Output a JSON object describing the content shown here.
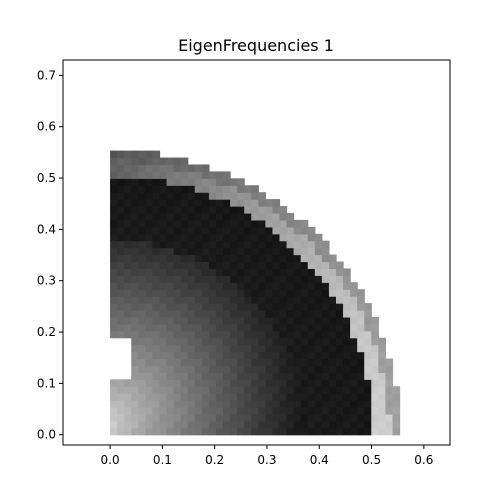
{
  "chart_data": {
    "type": "heatmap",
    "title": "EigenFrequencies 1",
    "xlabel": "",
    "ylabel": "",
    "xlim": [
      -0.09,
      0.65
    ],
    "ylim": [
      -0.02,
      0.73
    ],
    "x_ticks": [
      0.0,
      0.1,
      0.2,
      0.3,
      0.4,
      0.5,
      0.6
    ],
    "x_tick_labels": [
      "0.0",
      "0.1",
      "0.2",
      "0.3",
      "0.4",
      "0.5",
      "0.6"
    ],
    "y_ticks": [
      0.0,
      0.1,
      0.2,
      0.3,
      0.4,
      0.5,
      0.6,
      0.7
    ],
    "y_tick_labels": [
      "0.0",
      "0.1",
      "0.2",
      "0.3",
      "0.4",
      "0.5",
      "0.6",
      "0.7"
    ],
    "grid": false,
    "legend": "none",
    "colormap": "grayscale",
    "domain": "quarter-disk of radius ~0.555 with a notch near (0, 0.17)",
    "cell_size": 0.0135,
    "colors": {
      "background": "#ffffff",
      "axis": "#000000"
    }
  }
}
